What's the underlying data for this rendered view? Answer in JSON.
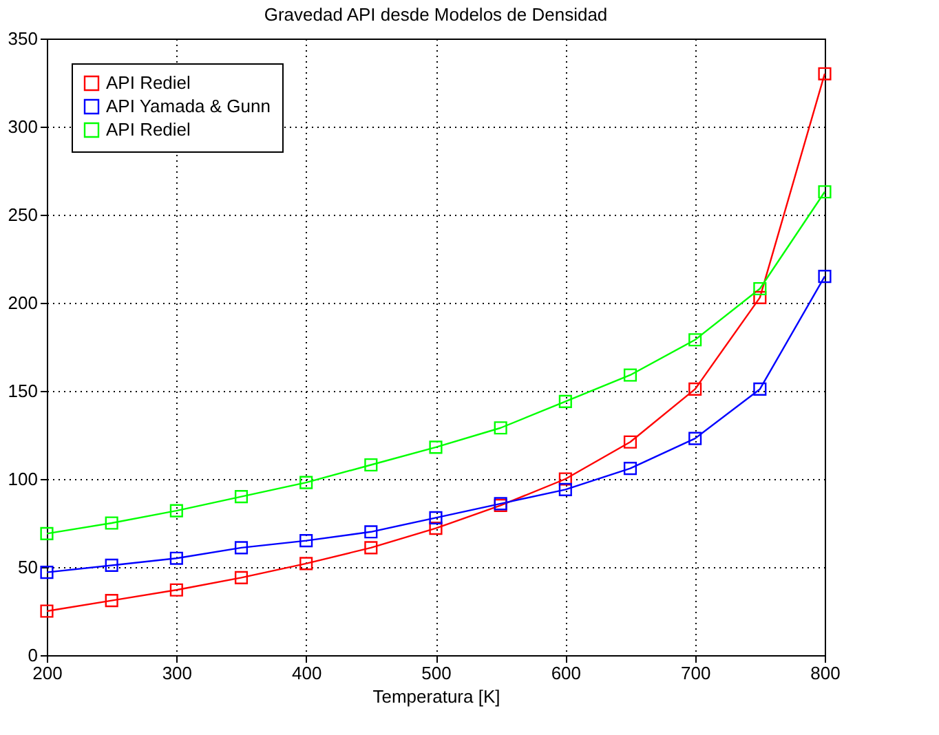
{
  "chart_data": {
    "type": "line",
    "title": "Gravedad API desde Modelos de Densidad",
    "xlabel": "Temperatura [K]",
    "x": [
      200,
      250,
      300,
      350,
      400,
      450,
      500,
      550,
      600,
      650,
      700,
      750,
      800
    ],
    "series": [
      {
        "name": "API Rediel",
        "color": "#ff0000",
        "values": [
          25,
          31,
          37,
          44,
          52,
          61,
          72,
          85,
          100,
          121,
          151,
          203,
          330
        ]
      },
      {
        "name": "API Yamada & Gunn",
        "color": "#0000ff",
        "values": [
          47,
          51,
          55,
          61,
          65,
          70,
          78,
          86,
          94,
          106,
          123,
          151,
          215
        ]
      },
      {
        "name": "API Rediel",
        "color": "#00ff00",
        "values": [
          69,
          75,
          82,
          90,
          98,
          108,
          118,
          129,
          144,
          159,
          179,
          208,
          263
        ]
      }
    ],
    "xlim": [
      200,
      800
    ],
    "xticks": [
      200,
      300,
      400,
      500,
      600,
      700,
      800
    ],
    "ylim": [
      0,
      350
    ],
    "yticks": [
      0,
      50,
      100,
      150,
      200,
      250,
      300,
      350
    ],
    "grid": true,
    "legend": "top left",
    "marker": "square",
    "line_style": "solid"
  }
}
